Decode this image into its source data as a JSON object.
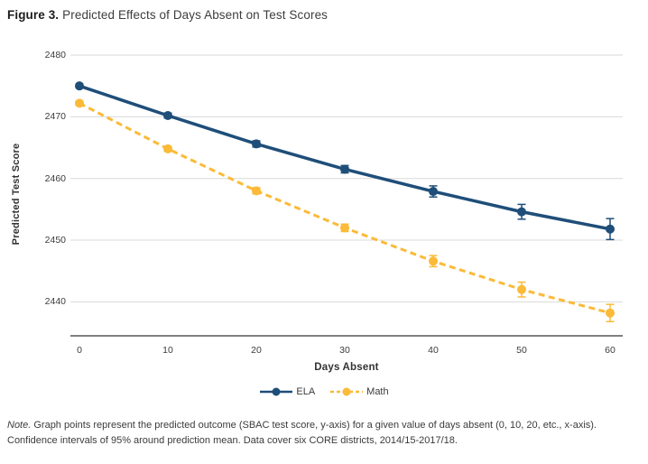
{
  "figure": {
    "label": "Figure 3.",
    "title": "Predicted Effects of Days Absent on Test Scores"
  },
  "chart_data": {
    "type": "line",
    "x": [
      0,
      10,
      20,
      30,
      40,
      50,
      60
    ],
    "xlabel": "Days Absent",
    "ylabel": "Predicted Test Score",
    "ylim": [
      2434.5,
      2480
    ],
    "yticks": [
      2440,
      2450,
      2460,
      2470,
      2480
    ],
    "grid": "horizontal",
    "legend_position": "bottom",
    "error_bars": "95% confidence intervals",
    "series": [
      {
        "name": "ELA",
        "color": "#1F4E79",
        "line_style": "solid",
        "marker": "circle",
        "values": [
          2475.0,
          2470.2,
          2465.6,
          2461.5,
          2457.9,
          2454.6,
          2451.8
        ],
        "ci": [
          0.3,
          0.4,
          0.5,
          0.6,
          0.9,
          1.2,
          1.7
        ]
      },
      {
        "name": "Math",
        "color": "#FBBA37",
        "line_style": "dashed",
        "marker": "circle",
        "values": [
          2472.2,
          2464.8,
          2458.0,
          2452.0,
          2446.6,
          2442.0,
          2438.2
        ],
        "ci": [
          0.3,
          0.4,
          0.5,
          0.6,
          0.9,
          1.2,
          1.4
        ]
      }
    ]
  },
  "note": {
    "prefix": "Note.",
    "text": " Graph points represent the predicted outcome (SBAC test score, y-axis) for a given value of days absent (0, 10, 20, etc., x-axis). Confidence intervals of 95% around prediction mean. Data cover six CORE districts, 2014/15-2017/18."
  },
  "colors": {
    "gridline": "#D9D9D9",
    "axis_line": "#808080",
    "text": "#3c3c3c"
  }
}
